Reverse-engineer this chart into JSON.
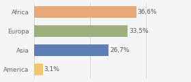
{
  "categories": [
    "America",
    "Asia",
    "Europa",
    "Africa"
  ],
  "values": [
    3.1,
    26.7,
    33.5,
    36.6
  ],
  "labels": [
    "3,1%",
    "26,7%",
    "33,5%",
    "36,6%"
  ],
  "bar_colors": [
    "#f2c76a",
    "#5e7fb5",
    "#9daf7a",
    "#e8a97a"
  ],
  "background_color": "#f5f5f5",
  "xlim": [
    0,
    48
  ],
  "label_fontsize": 6.5,
  "tick_fontsize": 6.5,
  "bar_height": 0.62
}
